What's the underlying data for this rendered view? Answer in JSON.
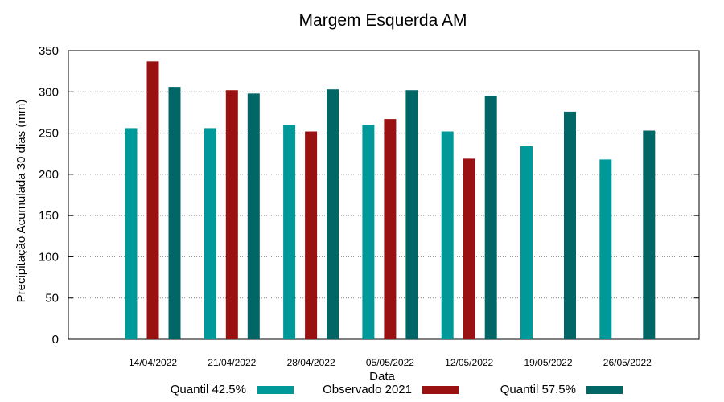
{
  "chart_data": {
    "type": "bar",
    "title": "Margem Esquerda AM",
    "xlabel": "Data",
    "ylabel": "Precipitação Acumulada 30 dias (mm)",
    "ylim": [
      0,
      350
    ],
    "yticks": [
      0,
      50,
      100,
      150,
      200,
      250,
      300,
      350
    ],
    "grid": true,
    "legend_position": "bottom",
    "categories": [
      "14/04/2022",
      "21/04/2022",
      "28/04/2022",
      "05/05/2022",
      "12/05/2022",
      "19/05/2022",
      "26/05/2022"
    ],
    "series": [
      {
        "name": "Quantil 42.5%",
        "color": "#009999",
        "values": [
          256,
          256,
          260,
          260,
          252,
          234,
          218
        ]
      },
      {
        "name": "Observado 2021",
        "color": "#991111",
        "values": [
          337,
          302,
          252,
          267,
          219,
          null,
          null
        ]
      },
      {
        "name": "Quantil 57.5%",
        "color": "#006666",
        "values": [
          306,
          298,
          303,
          302,
          295,
          276,
          253
        ]
      }
    ]
  }
}
